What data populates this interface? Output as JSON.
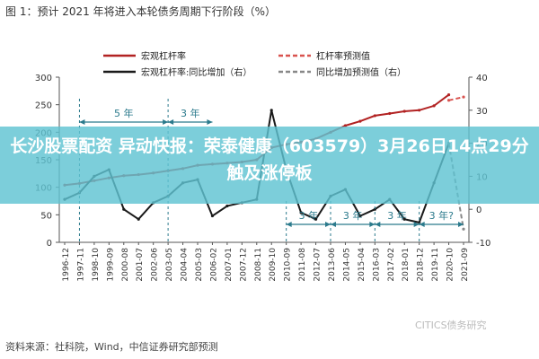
{
  "figure_title": "图 1：预计 2021 年将进入本轮债务周期下行阶段（%）",
  "headline": "长沙股票配资 异动快报：荣泰健康（603579）3月26日14点29分触及涨停板",
  "source_note": "资料来源：社科院，Wind，中信证券研究部预测",
  "watermark": "CITICS债务研究",
  "chart_data": {
    "type": "line",
    "x": [
      "1996-12",
      "1997-11",
      "1998-10",
      "1999-09",
      "2000-08",
      "2001-07",
      "2002-06",
      "2003-05",
      "2004-04",
      "2005-03",
      "2006-02",
      "2007-01",
      "2007-12",
      "2008-11",
      "2009-10",
      "2010-09",
      "2011-08",
      "2012-07",
      "2013-06",
      "2014-05",
      "2015-04",
      "2016-03",
      "2017-02",
      "2018-01",
      "2018-12",
      "2019-11",
      "2020-10",
      "2021-09"
    ],
    "ylim": [
      0,
      300
    ],
    "y2lim": [
      -10,
      40
    ],
    "yticks": [
      "300",
      "250",
      "200",
      "150",
      "100",
      "50",
      "0"
    ],
    "y2ticks": [
      "40",
      "30",
      "20",
      "10",
      "0",
      "-10"
    ],
    "series": [
      {
        "name": "宏观杠杆率",
        "axis": "left",
        "color": "#b22222",
        "style": "solid",
        "values": [
          104,
          107,
          112,
          117,
          121,
          123,
          126,
          130,
          134,
          140,
          142,
          144,
          146,
          150,
          172,
          178,
          182,
          188,
          200,
          212,
          220,
          230,
          234,
          238,
          240,
          248,
          268,
          null
        ]
      },
      {
        "name": "杠杆率预测值",
        "axis": "right",
        "color": "#d9534f",
        "style": "dashed",
        "values": [
          null,
          null,
          null,
          null,
          null,
          null,
          null,
          null,
          null,
          null,
          null,
          null,
          null,
          null,
          null,
          null,
          null,
          null,
          null,
          null,
          null,
          null,
          null,
          null,
          null,
          null,
          33,
          34
        ]
      },
      {
        "name": "宏观杠杆率:同比增加（右）",
        "axis": "right",
        "color": "#1a1a1a",
        "style": "solid",
        "values": [
          3,
          5,
          10,
          12,
          0,
          -3,
          2,
          4,
          8,
          9,
          -2,
          1,
          2,
          3,
          30,
          12,
          -1,
          -3,
          4,
          6,
          -2,
          0,
          3,
          -3,
          -4,
          8,
          20,
          null
        ]
      },
      {
        "name": "同比增加预测值（右）",
        "axis": "right",
        "color": "#888888",
        "style": "dashed",
        "values": [
          null,
          null,
          null,
          null,
          null,
          null,
          null,
          null,
          null,
          null,
          null,
          null,
          null,
          null,
          null,
          null,
          null,
          null,
          null,
          null,
          null,
          null,
          null,
          null,
          null,
          null,
          20,
          -6
        ]
      }
    ],
    "annotations_top": [
      {
        "text": "5 年",
        "from_index": 1,
        "to_index": 7
      },
      {
        "text": "3 年",
        "from_index": 7,
        "to_index": 10
      }
    ],
    "annotations_bottom": [
      {
        "text": "3 年",
        "from_index": 15,
        "to_index": 18
      },
      {
        "text": "3 年",
        "from_index": 18,
        "to_index": 21
      },
      {
        "text": "3 年",
        "from_index": 21,
        "to_index": 24
      },
      {
        "text": "3 年?",
        "from_index": 24,
        "to_index": 27
      }
    ]
  }
}
